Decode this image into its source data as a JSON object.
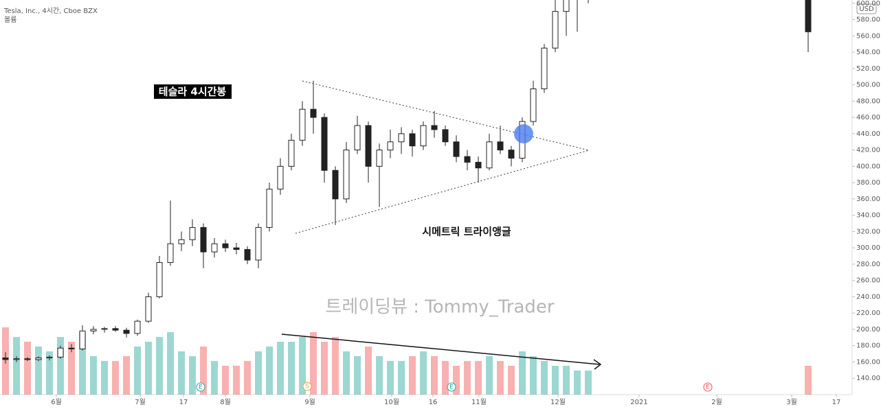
{
  "chart_data": {
    "type": "candlestick",
    "title": "Tesla, Inc., 4시간, Cboe BZX",
    "subtitle": "볼륨",
    "currency": "USD",
    "annotations": {
      "label": "테슬라 4시간봉",
      "pattern": "시메트릭 트라이앵글",
      "watermark": "트레이딩뷰 : Tommy_Trader"
    },
    "events": [
      "E",
      "S",
      "E",
      "E"
    ],
    "up_color": "#26a69a",
    "down_color": "#ef5350",
    "x": [
      0,
      1,
      2,
      3,
      4,
      5,
      6,
      7,
      8,
      9,
      10,
      11,
      12,
      13,
      14,
      15,
      16,
      17,
      18,
      19,
      20,
      21,
      22,
      23,
      24,
      25,
      26,
      27,
      28,
      29,
      30,
      31,
      32,
      33,
      34,
      35,
      36,
      37,
      38,
      39,
      40,
      41,
      42,
      43,
      44,
      45,
      46,
      47,
      48,
      49,
      50,
      51,
      52,
      53,
      73
    ],
    "open": [
      165,
      163,
      164,
      163,
      165,
      166,
      177,
      176,
      198,
      200,
      201,
      199,
      195,
      210,
      240,
      282,
      305,
      310,
      325,
      295,
      305,
      300,
      298,
      285,
      325,
      372,
      400,
      432,
      470,
      460,
      395,
      360,
      420,
      450,
      400,
      420,
      430,
      440,
      425,
      450,
      445,
      430,
      412,
      405,
      398,
      430,
      420,
      410,
      455,
      495,
      545,
      590,
      605,
      615,
      620
    ],
    "high": [
      172,
      167,
      166,
      167,
      168,
      180,
      182,
      205,
      204,
      203,
      204,
      202,
      212,
      245,
      290,
      358,
      320,
      335,
      330,
      312,
      310,
      306,
      302,
      330,
      380,
      410,
      440,
      480,
      505,
      465,
      400,
      430,
      462,
      455,
      428,
      445,
      448,
      445,
      455,
      468,
      450,
      438,
      420,
      412,
      440,
      450,
      425,
      460,
      505,
      550,
      610,
      625,
      630,
      640,
      640
    ],
    "low": [
      158,
      160,
      161,
      161,
      162,
      164,
      172,
      174,
      194,
      196,
      197,
      190,
      192,
      208,
      238,
      278,
      296,
      302,
      275,
      288,
      295,
      292,
      280,
      275,
      320,
      365,
      395,
      425,
      440,
      380,
      328,
      355,
      415,
      380,
      350,
      410,
      415,
      412,
      420,
      435,
      425,
      405,
      395,
      380,
      395,
      415,
      400,
      405,
      450,
      490,
      540,
      560,
      565,
      600,
      540
    ],
    "close": [
      163,
      164,
      163,
      165,
      166,
      177,
      176,
      198,
      200,
      201,
      199,
      195,
      210,
      240,
      282,
      305,
      310,
      325,
      295,
      305,
      300,
      298,
      285,
      325,
      372,
      400,
      432,
      470,
      460,
      395,
      360,
      420,
      450,
      400,
      420,
      430,
      440,
      425,
      450,
      445,
      430,
      412,
      405,
      398,
      430,
      420,
      410,
      455,
      495,
      545,
      590,
      605,
      615,
      625,
      565
    ],
    "volume": [
      70,
      60,
      55,
      50,
      45,
      60,
      55,
      65,
      40,
      35,
      35,
      40,
      50,
      55,
      60,
      65,
      45,
      40,
      50,
      35,
      30,
      30,
      35,
      45,
      50,
      55,
      55,
      60,
      65,
      55,
      60,
      45,
      40,
      50,
      40,
      35,
      35,
      40,
      45,
      40,
      35,
      30,
      35,
      35,
      40,
      35,
      30,
      45,
      40,
      35,
      30,
      30,
      25,
      25,
      30
    ],
    "volume_lim": [
      0,
      100
    ],
    "xlim": [
      -0.5,
      77
    ],
    "xticks": [
      {
        "value": 4.625,
        "label": "6월"
      },
      {
        "value": 12.25,
        "label": "7월"
      },
      {
        "value": 16.19,
        "label": "17"
      },
      {
        "value": 20,
        "label": "8월"
      },
      {
        "value": 27.69,
        "label": "9월"
      },
      {
        "value": 35.125,
        "label": "10월"
      },
      {
        "value": 38.875,
        "label": "16"
      },
      {
        "value": 43.06,
        "label": "11월"
      },
      {
        "value": 50.25,
        "label": "12월"
      },
      {
        "value": 57.625,
        "label": "2021"
      },
      {
        "value": 64.69,
        "label": "2월"
      },
      {
        "value": 71.5,
        "label": "3월"
      },
      {
        "value": 75.56,
        "label": "17"
      }
    ],
    "ylim": [
      120,
      604
    ],
    "yticks": [
      {
        "value": 140,
        "label": "140.00"
      },
      {
        "value": 160,
        "label": "160.00"
      },
      {
        "value": 180,
        "label": "180.00"
      },
      {
        "value": 200,
        "label": "200.00"
      },
      {
        "value": 220,
        "label": "220.00"
      },
      {
        "value": 240,
        "label": "240.00"
      },
      {
        "value": 260,
        "label": "260.00"
      },
      {
        "value": 280,
        "label": "280.00"
      },
      {
        "value": 300,
        "label": "300.00"
      },
      {
        "value": 320,
        "label": "320.00"
      },
      {
        "value": 340,
        "label": "340.00"
      },
      {
        "value": 360,
        "label": "360.00"
      },
      {
        "value": 380,
        "label": "380.00"
      },
      {
        "value": 400,
        "label": "400.00"
      },
      {
        "value": 420,
        "label": "420.00"
      },
      {
        "value": 440,
        "label": "440.00"
      },
      {
        "value": 460,
        "label": "460.00"
      },
      {
        "value": 480,
        "label": "480.00"
      },
      {
        "value": 500,
        "label": "500.00"
      },
      {
        "value": 520,
        "label": "520.00"
      },
      {
        "value": 540,
        "label": "540.00"
      },
      {
        "value": 560,
        "label": "560.00"
      },
      {
        "value": 580,
        "label": "580.00"
      },
      {
        "value": 600,
        "label": "600.00"
      }
    ]
  }
}
